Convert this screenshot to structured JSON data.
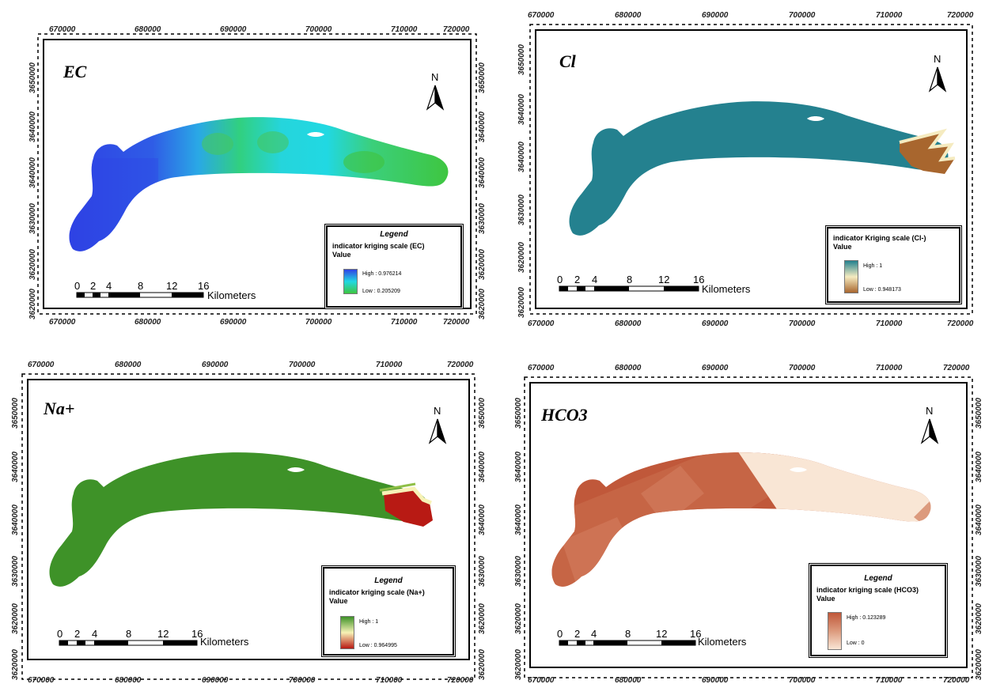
{
  "axes": {
    "x_ticks": [
      "670000",
      "680000",
      "690000",
      "700000",
      "710000",
      "720000"
    ],
    "y_ticks": [
      "3650000",
      "3640000",
      "3640000",
      "3630000",
      "3620000",
      "3620000"
    ]
  },
  "scalebar": {
    "labels": [
      "0",
      "2",
      "4",
      "8",
      "12",
      "16"
    ],
    "unit": "Kilometers"
  },
  "north_label": "N",
  "legend_title": "Legend",
  "value_label": "Value",
  "maps": [
    {
      "title": "EC",
      "layer": "indicator kriging scale (EC)",
      "high": "High : 0.976214",
      "low": "Low : 0.205209",
      "colors": {
        "high": "#2f42e4",
        "mid": "#21d8e2",
        "low": "#3ec640"
      }
    },
    {
      "title": "Cl",
      "layer": "indicator Kriging scale (Cl-)",
      "high": "High : 1",
      "low": "Low : 0.948173",
      "colors": {
        "high": "#24818f",
        "mid": "#f5ebc0",
        "low": "#a8662e"
      }
    },
    {
      "title": "Na+",
      "layer": "indicator kriging scale (Na+)",
      "high": "High : 1",
      "low": "Low : 0.964995",
      "colors": {
        "high": "#3e9228",
        "mid": "#f7f2b6",
        "low": "#b81a14"
      }
    },
    {
      "title": "HCO3",
      "layer": "indicator kriging scale (HCO3)",
      "high": "High : 0.123289",
      "low": "Low : 0",
      "colors": {
        "high": "#c0583a",
        "mid": "#dc9a7d",
        "low": "#f9e6d5"
      }
    }
  ]
}
